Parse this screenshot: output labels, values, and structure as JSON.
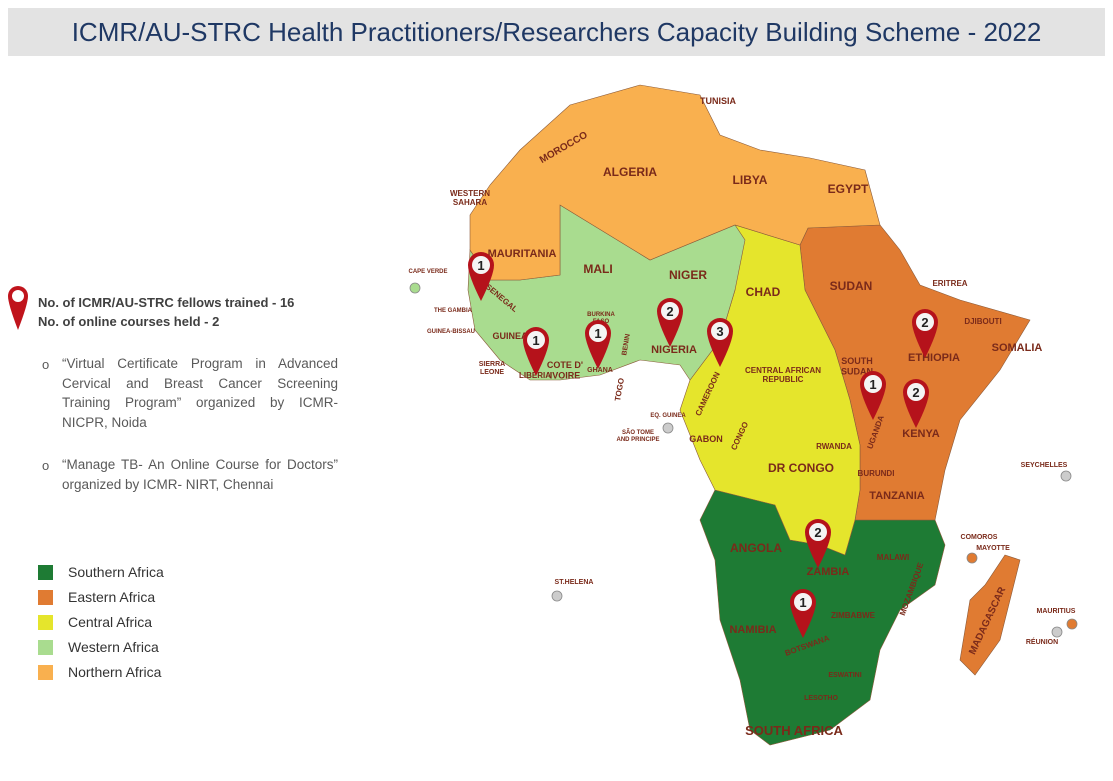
{
  "header": {
    "title": "ICMR/AU-STRC Health Practitioners/Researchers Capacity Building Scheme - 2022"
  },
  "stats": [
    "No. of ICMR/AU-STRC fellows trained - 16",
    "No. of online courses held - 2"
  ],
  "courses": [
    "“Virtual Certificate Program in Advanced Cervical and Breast Cancer Screening Training Program” organized by ICMR- NICPR, Noida",
    "“Manage TB- An Online Course for Doctors” organized by ICMR- NIRT, Chennai"
  ],
  "bullet": "o",
  "legend": [
    {
      "label": "Southern Africa",
      "color": "#1e7b34"
    },
    {
      "label": "Eastern Africa",
      "color": "#e07b32"
    },
    {
      "label": "Central Africa",
      "color": "#e5e52c"
    },
    {
      "label": "Western Africa",
      "color": "#a9dc8f"
    },
    {
      "label": "Northern Africa",
      "color": "#f9b04f"
    }
  ],
  "pins": [
    "1",
    "1",
    "1",
    "2",
    "3",
    "2",
    "1",
    "2",
    "2",
    "1"
  ],
  "map_labels": [
    "TUNISIA",
    "MOROCCO",
    "ALGERIA",
    "LIBYA",
    "EGYPT",
    [
      "WESTERN",
      "SAHARA"
    ],
    "MAURITANIA",
    "MALI",
    "NIGER",
    "CHAD",
    "SUDAN",
    "ERITREA",
    "DJIBOUTI",
    "SOMALIA",
    "ETHIOPIA",
    [
      "SOUTH",
      "SUDAN"
    ],
    [
      "CENTRAL AFRICAN",
      "REPUBLIC"
    ],
    "NIGERIA",
    "CAMEROON",
    "BENIN",
    "TOGO",
    "GHANA",
    [
      "COTE D'",
      "IVOIRE"
    ],
    "LIBERIA",
    [
      "SIERRA",
      "LEONE"
    ],
    "GUINEA",
    "GUINEA-BISSAU",
    "THE GAMBIA",
    "SENEGAL",
    "CAPE VERDE",
    "EQ. GUINEA",
    [
      "SÃO TOME",
      "AND PRINCIPE"
    ],
    "GABON",
    "CONGO",
    "DR CONGO",
    "RWANDA",
    "BURUNDI",
    "UGANDA",
    "KENYA",
    "TANZANIA",
    "SEYCHELLES",
    "COMOROS",
    "MAYOTTE",
    "MADAGASCAR",
    "MAURITIUS",
    "RÉUNION",
    "ANGOLA",
    "ZAMBIA",
    "MALAWI",
    "MOZAMBIQUE",
    "ZIMBABWE",
    "NAMIBIA",
    "BOTSWANA",
    "ESWATINI",
    "LESOTHO",
    "SOUTH AFRICA",
    "ST.HELENA",
    [
      "BURKINA",
      "FASO"
    ]
  ]
}
